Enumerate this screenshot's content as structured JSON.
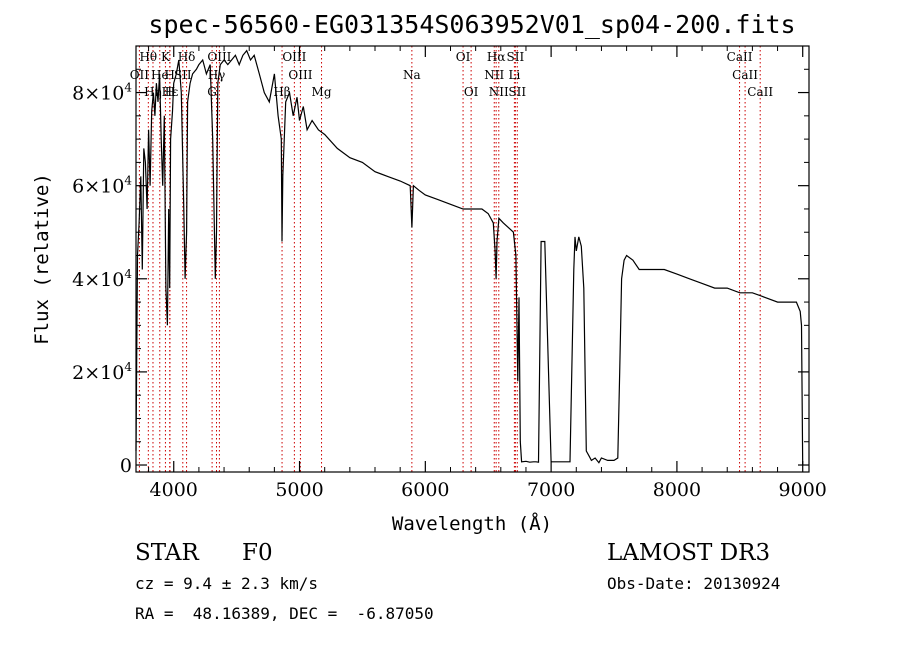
{
  "chart_data": {
    "type": "line",
    "title": "spec-56560-EG031354S063952V01_sp04-200.fits",
    "xlabel": "Wavelength (Å)",
    "ylabel": "Flux (relative)",
    "xlim": [
      3700,
      9050
    ],
    "ylim": [
      -1500,
      90000
    ],
    "x_ticks": [
      {
        "value": 4000,
        "label": "4000"
      },
      {
        "value": 5000,
        "label": "5000"
      },
      {
        "value": 6000,
        "label": "6000"
      },
      {
        "value": 7000,
        "label": "7000"
      },
      {
        "value": 8000,
        "label": "8000"
      },
      {
        "value": 9000,
        "label": "9000"
      }
    ],
    "y_ticks": [
      {
        "value": 0,
        "mantissa": "0",
        "exponent": ""
      },
      {
        "value": 20000,
        "mantissa": "2×10",
        "exponent": "4"
      },
      {
        "value": 40000,
        "mantissa": "4×10",
        "exponent": "4"
      },
      {
        "value": 60000,
        "mantissa": "6×10",
        "exponent": "4"
      },
      {
        "value": 80000,
        "mantissa": "8×10",
        "exponent": "4"
      }
    ],
    "series": [
      {
        "name": "flux",
        "x": [
          3700,
          3712,
          3725,
          3738,
          3750,
          3762,
          3775,
          3788,
          3800,
          3812,
          3825,
          3838,
          3850,
          3862,
          3875,
          3888,
          3900,
          3912,
          3925,
          3938,
          3950,
          3960,
          3968,
          3975,
          3990,
          4000,
          4020,
          4040,
          4060,
          4080,
          4090,
          4102,
          4110,
          4130,
          4150,
          4180,
          4200,
          4230,
          4260,
          4290,
          4310,
          4330,
          4340,
          4350,
          4370,
          4400,
          4430,
          4460,
          4490,
          4520,
          4550,
          4580,
          4610,
          4640,
          4680,
          4720,
          4760,
          4800,
          4830,
          4855,
          4861,
          4867,
          4890,
          4920,
          4950,
          4980,
          5000,
          5030,
          5060,
          5100,
          5150,
          5200,
          5300,
          5400,
          5500,
          5600,
          5700,
          5800,
          5880,
          5893,
          5905,
          5950,
          6000,
          6100,
          6200,
          6300,
          6400,
          6450,
          6500,
          6540,
          6555,
          6563,
          6570,
          6585,
          6620,
          6660,
          6700,
          6720,
          6735,
          6745,
          6755,
          6765,
          6800,
          6830,
          6860,
          6880,
          6900,
          6920,
          6950,
          7000,
          7050,
          7100,
          7150,
          7180,
          7190,
          7200,
          7220,
          7240,
          7260,
          7280,
          7300,
          7320,
          7350,
          7380,
          7400,
          7450,
          7500,
          7530,
          7545,
          7560,
          7580,
          7600,
          7650,
          7700,
          7800,
          7900,
          8000,
          8100,
          8200,
          8300,
          8400,
          8500,
          8600,
          8700,
          8800,
          8900,
          8950,
          8980,
          8990,
          9000
        ],
        "y": [
          3000,
          45000,
          52000,
          62000,
          42000,
          68000,
          65000,
          55000,
          72000,
          60000,
          76000,
          80000,
          75000,
          82000,
          78000,
          84000,
          70000,
          60000,
          75000,
          38000,
          30000,
          55000,
          38000,
          70000,
          76000,
          82000,
          84000,
          87000,
          80000,
          55000,
          40000,
          50000,
          78000,
          82000,
          84000,
          85000,
          86000,
          87000,
          84000,
          86000,
          70000,
          40000,
          50000,
          82000,
          86000,
          87000,
          86000,
          87000,
          88000,
          86000,
          88000,
          89000,
          87000,
          88000,
          84000,
          80000,
          78000,
          84000,
          75000,
          70000,
          48000,
          62000,
          78000,
          80000,
          75000,
          79000,
          74000,
          77000,
          72000,
          74000,
          72000,
          71000,
          68000,
          66000,
          65000,
          63000,
          62000,
          61000,
          60000,
          51000,
          60000,
          59000,
          58000,
          57000,
          56000,
          55000,
          55000,
          55000,
          54000,
          52000,
          46000,
          40000,
          48000,
          53000,
          52000,
          51000,
          50000,
          45000,
          18000,
          36000,
          5000,
          700,
          800,
          600,
          700,
          700,
          600,
          48000,
          48000,
          700,
          700,
          700,
          700,
          42000,
          49000,
          46000,
          49000,
          47000,
          38000,
          3000,
          2000,
          1000,
          1500,
          500,
          1500,
          1000,
          1000,
          1500,
          20000,
          40000,
          44000,
          45000,
          44000,
          42000,
          42000,
          42000,
          41000,
          40000,
          39000,
          38000,
          38000,
          37000,
          37000,
          36000,
          35000,
          35000,
          35000,
          33000,
          30000,
          0
        ]
      }
    ],
    "line_labels": [
      {
        "name": "Hθ",
        "x": 3798,
        "row": 1
      },
      {
        "name": "OII",
        "x": 3727,
        "row": 2
      },
      {
        "name": "Hη",
        "x": 3835,
        "row": 3
      },
      {
        "name": "K",
        "x": 3934,
        "row": 1
      },
      {
        "name": "He",
        "x": 3889,
        "row": 2
      },
      {
        "name": "H",
        "x": 3968,
        "row": 2
      },
      {
        "name": "Hε",
        "x": 3970,
        "row": 3
      },
      {
        "name": "Hδ",
        "x": 4102,
        "row": 1
      },
      {
        "name": "SII",
        "x": 4072,
        "row": 2
      },
      {
        "name": "H",
        "x": 3970,
        "row": 3
      },
      {
        "name": "OIII",
        "x": 4363,
        "row": 1
      },
      {
        "name": "Hγ",
        "x": 4340,
        "row": 2
      },
      {
        "name": "G",
        "x": 4305,
        "row": 3
      },
      {
        "name": "OIII",
        "x": 4959,
        "row": 1
      },
      {
        "name": "OIII",
        "x": 5007,
        "row": 2
      },
      {
        "name": "Hβ",
        "x": 4861,
        "row": 3
      },
      {
        "name": "Mg",
        "x": 5175,
        "row": 3
      },
      {
        "name": "Na",
        "x": 5893,
        "row": 2
      },
      {
        "name": "OI",
        "x": 6300,
        "row": 1
      },
      {
        "name": "OI",
        "x": 6364,
        "row": 3
      },
      {
        "name": "Hα",
        "x": 6563,
        "row": 1
      },
      {
        "name": "NII",
        "x": 6548,
        "row": 2
      },
      {
        "name": "NII",
        "x": 6584,
        "row": 3
      },
      {
        "name": "SII",
        "x": 6716,
        "row": 1
      },
      {
        "name": "Li",
        "x": 6708,
        "row": 2
      },
      {
        "name": "SII",
        "x": 6731,
        "row": 3
      },
      {
        "name": "CaII",
        "x": 8498,
        "row": 1
      },
      {
        "name": "CaII",
        "x": 8542,
        "row": 2
      },
      {
        "name": "CaII",
        "x": 8662,
        "row": 3
      }
    ],
    "line_markers": [
      3727,
      3798,
      3835,
      3889,
      3934,
      3968,
      3970,
      4072,
      4102,
      4305,
      4340,
      4363,
      4861,
      4959,
      5007,
      5175,
      5893,
      6300,
      6364,
      6548,
      6563,
      6584,
      6708,
      6716,
      6731,
      8498,
      8542,
      8662
    ],
    "colors": {
      "axes": "#000000",
      "spectrum": "#000000",
      "line_markers": "#cc0000"
    }
  },
  "info": {
    "object_type": "STAR",
    "subclass": "F0",
    "survey": "LAMOST DR3",
    "cz": "cz = 9.4 ± 2.3 km/s",
    "obs_date": "Obs-Date: 20130924",
    "coords": "RA =  48.16389, DEC =  -6.87050"
  }
}
